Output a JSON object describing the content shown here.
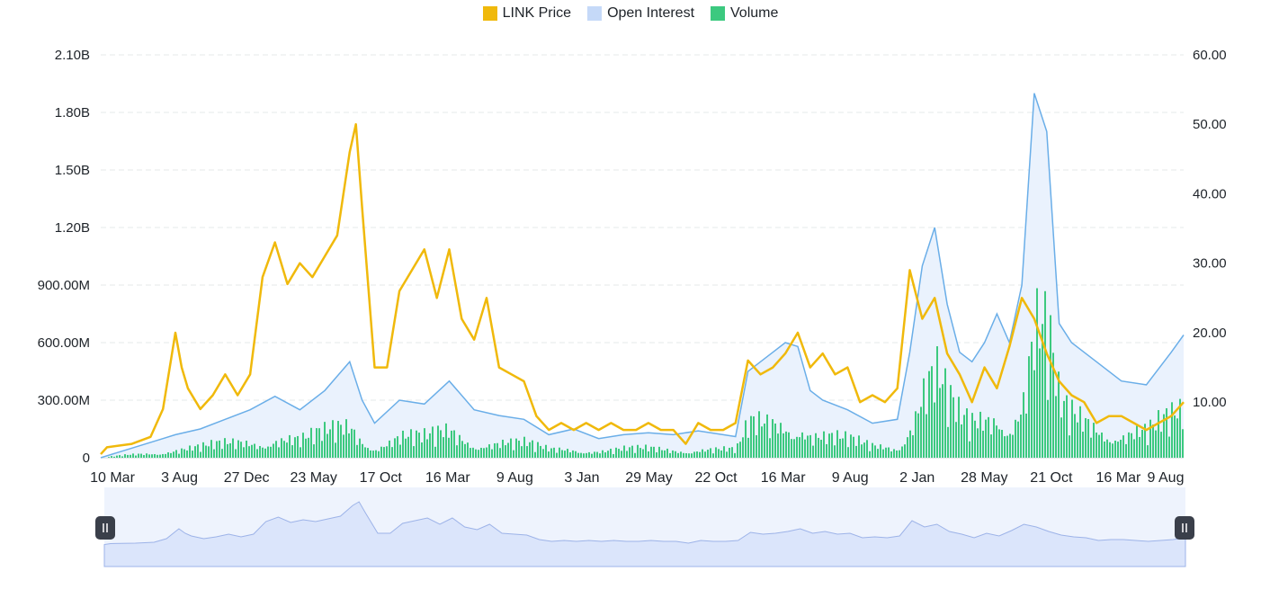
{
  "colors": {
    "price": "#f0b90b",
    "open_interest_line": "#6aaee8",
    "open_interest_fill": "#c5d9f8",
    "volume": "#3cc97f",
    "grid": "#e6e8ea",
    "navigator_fill": "#dbe5fb",
    "navigator_bg": "#eef3fd",
    "handle": "#3a3f4a"
  },
  "chart_data": {
    "type": "line",
    "legend": {
      "position": "top-center",
      "entries": [
        "LINK Price",
        "Open Interest",
        "Volume"
      ]
    },
    "x_ticks": [
      "10 Mar",
      "3 Aug",
      "27 Dec",
      "23 May",
      "17 Oct",
      "16 Mar",
      "9 Aug",
      "3 Jan",
      "29 May",
      "22 Oct",
      "16 Mar",
      "9 Aug",
      "2 Jan",
      "28 May",
      "21 Oct",
      "16 Mar",
      "9 Aug"
    ],
    "y_left": {
      "ticks": [
        "0",
        "300.00M",
        "600.00M",
        "900.00M",
        "1.20B",
        "1.50B",
        "1.80B",
        "2.10B"
      ],
      "range": [
        0,
        2100000000
      ]
    },
    "y_right": {
      "ticks": [
        "10.00",
        "20.00",
        "30.00",
        "40.00",
        "50.00",
        "60.00"
      ],
      "range": [
        2,
        60
      ]
    },
    "grid": true,
    "series": [
      {
        "name": "LINK Price",
        "axis": "right",
        "style": "line",
        "points": [
          [
            0,
            2.5
          ],
          [
            0.5,
            3.5
          ],
          [
            2.5,
            4
          ],
          [
            4,
            5
          ],
          [
            5,
            9
          ],
          [
            6,
            20
          ],
          [
            6.5,
            15
          ],
          [
            7,
            12
          ],
          [
            8,
            9
          ],
          [
            9,
            11
          ],
          [
            10,
            14
          ],
          [
            11,
            11
          ],
          [
            12,
            14
          ],
          [
            13,
            28
          ],
          [
            14,
            33
          ],
          [
            15,
            27
          ],
          [
            16,
            30
          ],
          [
            17,
            28
          ],
          [
            18,
            31
          ],
          [
            19,
            34
          ],
          [
            20,
            46
          ],
          [
            20.5,
            50
          ],
          [
            21,
            38
          ],
          [
            22,
            15
          ],
          [
            23,
            15
          ],
          [
            24,
            26
          ],
          [
            25,
            29
          ],
          [
            26,
            32
          ],
          [
            27,
            25
          ],
          [
            28,
            32
          ],
          [
            29,
            22
          ],
          [
            30,
            19
          ],
          [
            31,
            25
          ],
          [
            32,
            15
          ],
          [
            33,
            14
          ],
          [
            34,
            13
          ],
          [
            35,
            8
          ],
          [
            36,
            6
          ],
          [
            37,
            7
          ],
          [
            38,
            6
          ],
          [
            39,
            7
          ],
          [
            40,
            6
          ],
          [
            41,
            7
          ],
          [
            42,
            6
          ],
          [
            43,
            6
          ],
          [
            44,
            7
          ],
          [
            45,
            6
          ],
          [
            46,
            6
          ],
          [
            47,
            4
          ],
          [
            48,
            7
          ],
          [
            49,
            6
          ],
          [
            50,
            6
          ],
          [
            51,
            7
          ],
          [
            52,
            16
          ],
          [
            53,
            14
          ],
          [
            54,
            15
          ],
          [
            55,
            17
          ],
          [
            56,
            20
          ],
          [
            57,
            15
          ],
          [
            58,
            17
          ],
          [
            59,
            14
          ],
          [
            60,
            15
          ],
          [
            61,
            10
          ],
          [
            62,
            11
          ],
          [
            63,
            10
          ],
          [
            64,
            12
          ],
          [
            65,
            29
          ],
          [
            66,
            22
          ],
          [
            67,
            25
          ],
          [
            68,
            17
          ],
          [
            69,
            14
          ],
          [
            70,
            10
          ],
          [
            71,
            15
          ],
          [
            72,
            12
          ],
          [
            73,
            18
          ],
          [
            74,
            25
          ],
          [
            75,
            22
          ],
          [
            76,
            17
          ],
          [
            77,
            13
          ],
          [
            78,
            11
          ],
          [
            79,
            10
          ],
          [
            80,
            7
          ],
          [
            81,
            8
          ],
          [
            82,
            8
          ],
          [
            83,
            7
          ],
          [
            84,
            6
          ],
          [
            85,
            7
          ],
          [
            86,
            8
          ],
          [
            87,
            10
          ]
        ]
      },
      {
        "name": "Open Interest",
        "axis": "left",
        "style": "area",
        "points": [
          [
            0,
            0
          ],
          [
            5,
            0.1
          ],
          [
            6,
            0.12
          ],
          [
            8,
            0.15
          ],
          [
            10,
            0.2
          ],
          [
            12,
            0.25
          ],
          [
            14,
            0.32
          ],
          [
            16,
            0.25
          ],
          [
            18,
            0.35
          ],
          [
            20,
            0.5
          ],
          [
            21,
            0.3
          ],
          [
            22,
            0.18
          ],
          [
            24,
            0.3
          ],
          [
            26,
            0.28
          ],
          [
            28,
            0.4
          ],
          [
            30,
            0.25
          ],
          [
            32,
            0.22
          ],
          [
            34,
            0.2
          ],
          [
            36,
            0.12
          ],
          [
            38,
            0.15
          ],
          [
            40,
            0.1
          ],
          [
            42,
            0.12
          ],
          [
            44,
            0.13
          ],
          [
            46,
            0.12
          ],
          [
            48,
            0.14
          ],
          [
            50,
            0.12
          ],
          [
            51,
            0.11
          ],
          [
            52,
            0.45
          ],
          [
            53,
            0.5
          ],
          [
            54,
            0.55
          ],
          [
            55,
            0.6
          ],
          [
            56,
            0.58
          ],
          [
            57,
            0.35
          ],
          [
            58,
            0.3
          ],
          [
            60,
            0.25
          ],
          [
            62,
            0.18
          ],
          [
            64,
            0.2
          ],
          [
            65,
            0.55
          ],
          [
            66,
            1.0
          ],
          [
            67,
            1.2
          ],
          [
            68,
            0.8
          ],
          [
            69,
            0.55
          ],
          [
            70,
            0.5
          ],
          [
            71,
            0.6
          ],
          [
            72,
            0.75
          ],
          [
            73,
            0.6
          ],
          [
            74,
            0.9
          ],
          [
            75,
            1.9
          ],
          [
            76,
            1.7
          ],
          [
            77,
            0.7
          ],
          [
            78,
            0.6
          ],
          [
            80,
            0.5
          ],
          [
            82,
            0.4
          ],
          [
            84,
            0.38
          ],
          [
            86,
            0.55
          ],
          [
            87,
            0.64
          ]
        ]
      },
      {
        "name": "Volume",
        "axis": "left",
        "style": "bars"
      }
    ]
  }
}
